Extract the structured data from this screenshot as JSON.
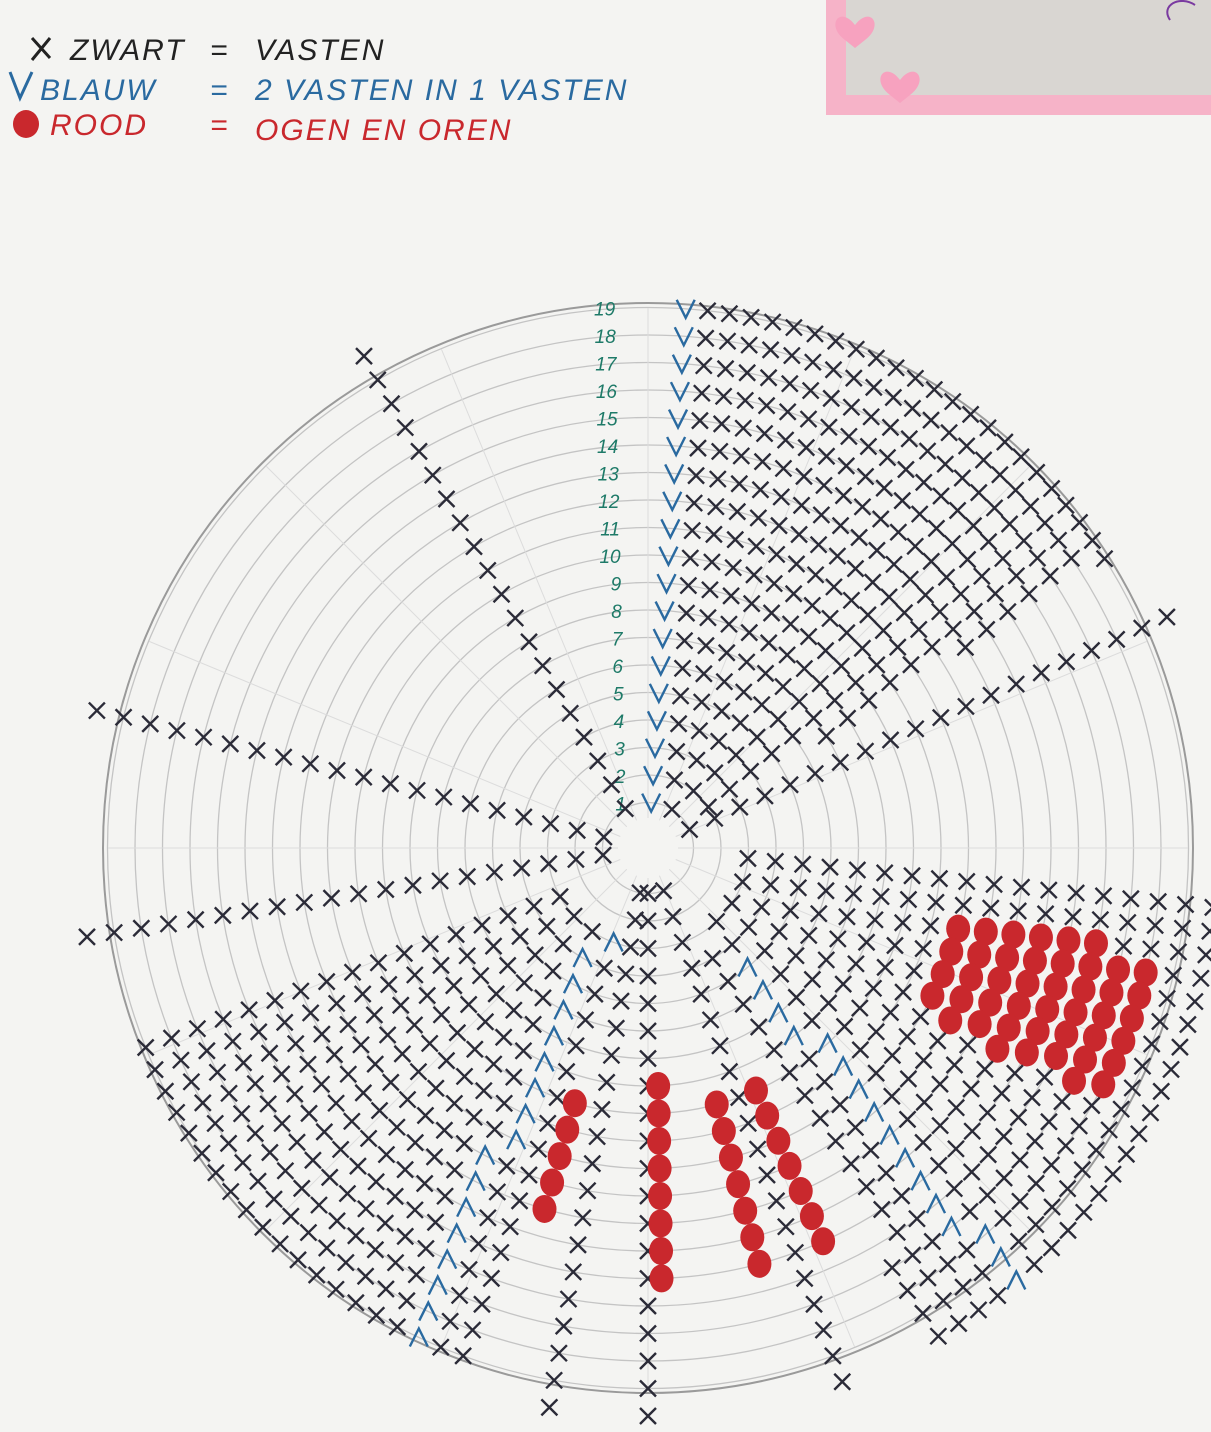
{
  "legend": [
    {
      "name": "ZWART",
      "equals": "=",
      "meaning": "VASTEN"
    },
    {
      "name": "BLAUW",
      "equals": "=",
      "meaning": "2 VASTEN IN 1 VASTEN"
    },
    {
      "name": "ROOD",
      "equals": "=",
      "meaning": "OGEN EN OREN"
    }
  ],
  "chart": {
    "row_numbers": [
      1,
      2,
      3,
      4,
      5,
      6,
      7,
      8,
      9,
      10,
      11,
      12,
      13,
      14,
      15,
      16,
      17,
      18,
      19
    ]
  }
}
